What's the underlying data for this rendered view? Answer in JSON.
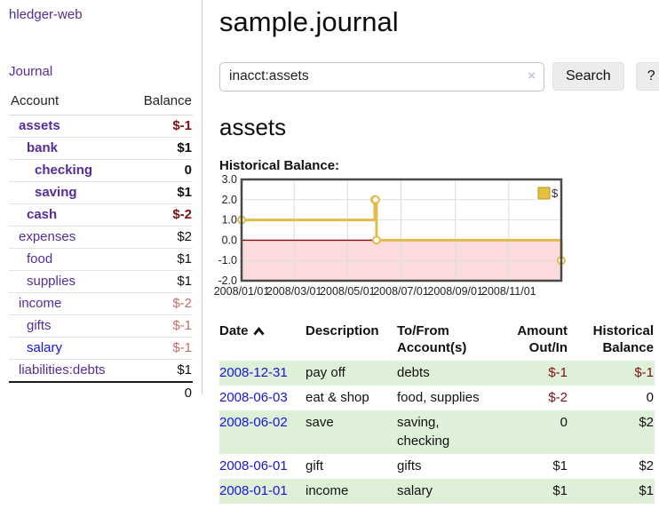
{
  "sidebar": {
    "app_title": "hledger-web",
    "nav": {
      "journal_label": "Journal"
    },
    "accounts_table": {
      "headers": {
        "account": "Account",
        "balance": "Balance"
      },
      "rows": [
        {
          "name": "assets",
          "balance": "$-1",
          "depth": 1,
          "bold": true,
          "balance_style": "negative-strong"
        },
        {
          "name": "bank",
          "balance": "$1",
          "depth": 2,
          "bold": true,
          "balance_style": "normal"
        },
        {
          "name": "checking",
          "balance": "0",
          "depth": 3,
          "bold": true,
          "balance_style": "normal"
        },
        {
          "name": "saving",
          "balance": "$1",
          "depth": 3,
          "bold": true,
          "balance_style": "normal"
        },
        {
          "name": "cash",
          "balance": "$-2",
          "depth": 2,
          "bold": true,
          "balance_style": "negative-strong"
        },
        {
          "name": "expenses",
          "balance": "$2",
          "depth": 1,
          "bold": false,
          "balance_style": "normal"
        },
        {
          "name": "food",
          "balance": "$1",
          "depth": 2,
          "bold": false,
          "balance_style": "normal"
        },
        {
          "name": "supplies",
          "balance": "$1",
          "depth": 2,
          "bold": false,
          "balance_style": "normal"
        },
        {
          "name": "income",
          "balance": "$-2",
          "depth": 1,
          "bold": false,
          "balance_style": "negative-soft"
        },
        {
          "name": "gifts",
          "balance": "$-1",
          "depth": 2,
          "bold": false,
          "balance_style": "negative-soft"
        },
        {
          "name": "salary",
          "balance": "$-1",
          "depth": 2,
          "bold": false,
          "balance_style": "negative-soft",
          "link_style": "blue"
        },
        {
          "name": "liabilities:debts",
          "balance": "$1",
          "depth": 1,
          "bold": false,
          "balance_style": "normal"
        }
      ],
      "total": "0"
    }
  },
  "header": {
    "title": "sample.journal"
  },
  "search": {
    "query": "inacct:assets",
    "clear_icon": "×",
    "button_label": "Search",
    "help_label": "?"
  },
  "account_view": {
    "heading": "assets",
    "chart_label": "Historical Balance:"
  },
  "chart_data": {
    "type": "line",
    "title": "Historical Balance",
    "step": true,
    "series": [
      {
        "name": "$",
        "points": [
          {
            "date": "2008-01-01",
            "value": 1
          },
          {
            "date": "2008-06-01",
            "value": 2
          },
          {
            "date": "2008-06-02",
            "value": 2
          },
          {
            "date": "2008-06-03",
            "value": 0
          },
          {
            "date": "2008-12-31",
            "value": -1
          }
        ]
      }
    ],
    "x_range": [
      "2008-01-01",
      "2008-12-31"
    ],
    "ylim": [
      -2,
      3
    ],
    "y_tick_labels": [
      "3.0",
      "2.0",
      "1.0",
      "0.0",
      "-1.0",
      "-2.0"
    ],
    "x_ticks": [
      {
        "date": "2008-01-01",
        "label": "2008/01/01"
      },
      {
        "date": "2008-03-01",
        "label": "2008/03/01"
      },
      {
        "date": "2008-05-01",
        "label": "2008/05/01"
      },
      {
        "date": "2008-07-01",
        "label": "2008/07/01"
      },
      {
        "date": "2008-09-01",
        "label": "2008/09/01"
      },
      {
        "date": "2008-11-01",
        "label": "2008/11/01"
      }
    ],
    "legend": {
      "label": "$",
      "position": "top-right"
    },
    "grid": true,
    "colors": {
      "line": "#e3bb4a",
      "marker_fill": "#ffffff",
      "negative_region": "#fbdbdb",
      "zero_line": "#8b0000",
      "grid": "#dddddd",
      "border": "#4a4a4a",
      "legend_swatch": "#e6c23c",
      "legend_swatch_border": "#b5952f"
    }
  },
  "register_table": {
    "headers": {
      "date": "Date",
      "description": "Description",
      "accounts": "To/From Account(s)",
      "amount": "Amount Out/In",
      "balance": "Historical Balance"
    },
    "rows": [
      {
        "date": "2008-12-31",
        "description": "pay off",
        "accounts": "debts",
        "amount": "$-1",
        "amount_negative": true,
        "balance": "$-1",
        "balance_negative": true
      },
      {
        "date": "2008-06-03",
        "description": "eat & shop",
        "accounts": "food, supplies",
        "amount": "$-2",
        "amount_negative": true,
        "balance": "0",
        "balance_negative": false
      },
      {
        "date": "2008-06-02",
        "description": "save",
        "accounts": "saving, checking",
        "amount": "0",
        "amount_negative": false,
        "balance": "$2",
        "balance_negative": false
      },
      {
        "date": "2008-06-01",
        "description": "gift",
        "accounts": "gifts",
        "amount": "$1",
        "amount_negative": false,
        "balance": "$2",
        "balance_negative": false
      },
      {
        "date": "2008-01-01",
        "description": "income",
        "accounts": "salary",
        "amount": "$1",
        "amount_negative": false,
        "balance": "$1",
        "balance_negative": false
      }
    ]
  }
}
